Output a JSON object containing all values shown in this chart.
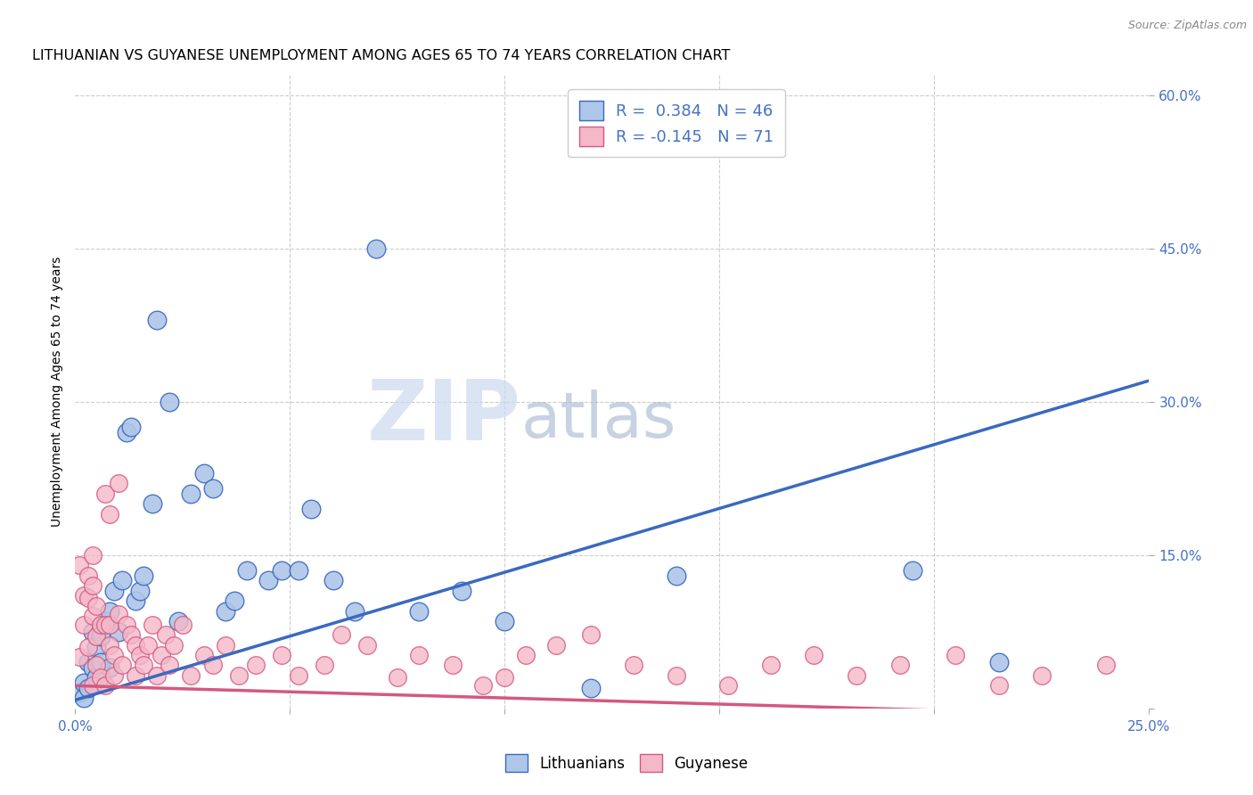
{
  "title": "LITHUANIAN VS GUYANESE UNEMPLOYMENT AMONG AGES 65 TO 74 YEARS CORRELATION CHART",
  "source": "Source: ZipAtlas.com",
  "ylabel": "Unemployment Among Ages 65 to 74 years",
  "xlim": [
    0.0,
    0.25
  ],
  "ylim": [
    0.0,
    0.62
  ],
  "xticks": [
    0.0,
    0.05,
    0.1,
    0.15,
    0.2,
    0.25
  ],
  "xticklabels": [
    "0.0%",
    "",
    "",
    "",
    "",
    "25.0%"
  ],
  "yticks": [
    0.0,
    0.15,
    0.3,
    0.45,
    0.6
  ],
  "yticklabels": [
    "",
    "15.0%",
    "30.0%",
    "45.0%",
    "60.0%"
  ],
  "legend_labels": [
    "Lithuanians",
    "Guyanese"
  ],
  "r_lith": 0.384,
  "n_lith": 46,
  "r_guy": -0.145,
  "n_guy": 71,
  "watermark_zip": "ZIP",
  "watermark_atlas": "atlas",
  "blue_color": "#aec6e8",
  "pink_color": "#f4b8c8",
  "blue_line_color": "#3a6abf",
  "pink_line_color": "#d45880",
  "title_fontsize": 11.5,
  "axis_label_fontsize": 10,
  "tick_fontsize": 11,
  "lith_x": [
    0.001,
    0.002,
    0.002,
    0.003,
    0.003,
    0.004,
    0.004,
    0.005,
    0.005,
    0.006,
    0.006,
    0.007,
    0.008,
    0.008,
    0.009,
    0.01,
    0.011,
    0.012,
    0.013,
    0.014,
    0.015,
    0.016,
    0.018,
    0.019,
    0.022,
    0.024,
    0.027,
    0.03,
    0.032,
    0.035,
    0.037,
    0.04,
    0.045,
    0.048,
    0.052,
    0.055,
    0.06,
    0.065,
    0.07,
    0.08,
    0.09,
    0.1,
    0.12,
    0.14,
    0.195,
    0.215
  ],
  "lith_y": [
    0.015,
    0.025,
    0.01,
    0.045,
    0.02,
    0.04,
    0.075,
    0.03,
    0.06,
    0.045,
    0.07,
    0.085,
    0.04,
    0.095,
    0.115,
    0.075,
    0.125,
    0.27,
    0.275,
    0.105,
    0.115,
    0.13,
    0.2,
    0.38,
    0.3,
    0.085,
    0.21,
    0.23,
    0.215,
    0.095,
    0.105,
    0.135,
    0.125,
    0.135,
    0.135,
    0.195,
    0.125,
    0.095,
    0.45,
    0.095,
    0.115,
    0.085,
    0.02,
    0.13,
    0.135,
    0.045
  ],
  "guy_x": [
    0.001,
    0.001,
    0.002,
    0.002,
    0.003,
    0.003,
    0.003,
    0.004,
    0.004,
    0.004,
    0.004,
    0.005,
    0.005,
    0.005,
    0.006,
    0.006,
    0.007,
    0.007,
    0.007,
    0.008,
    0.008,
    0.008,
    0.009,
    0.009,
    0.01,
    0.01,
    0.011,
    0.012,
    0.013,
    0.014,
    0.014,
    0.015,
    0.016,
    0.017,
    0.018,
    0.019,
    0.02,
    0.021,
    0.022,
    0.023,
    0.025,
    0.027,
    0.03,
    0.032,
    0.035,
    0.038,
    0.042,
    0.048,
    0.052,
    0.058,
    0.062,
    0.068,
    0.075,
    0.08,
    0.088,
    0.095,
    0.1,
    0.105,
    0.112,
    0.12,
    0.13,
    0.14,
    0.152,
    0.162,
    0.172,
    0.182,
    0.192,
    0.205,
    0.215,
    0.225,
    0.24
  ],
  "guy_y": [
    0.05,
    0.14,
    0.082,
    0.11,
    0.108,
    0.06,
    0.13,
    0.09,
    0.022,
    0.15,
    0.12,
    0.042,
    0.1,
    0.07,
    0.03,
    0.082,
    0.022,
    0.082,
    0.21,
    0.062,
    0.19,
    0.082,
    0.052,
    0.032,
    0.22,
    0.092,
    0.042,
    0.082,
    0.072,
    0.062,
    0.032,
    0.052,
    0.042,
    0.062,
    0.082,
    0.032,
    0.052,
    0.072,
    0.042,
    0.062,
    0.082,
    0.032,
    0.052,
    0.042,
    0.062,
    0.032,
    0.042,
    0.052,
    0.032,
    0.042,
    0.072,
    0.062,
    0.03,
    0.052,
    0.042,
    0.022,
    0.03,
    0.052,
    0.062,
    0.072,
    0.042,
    0.032,
    0.022,
    0.042,
    0.052,
    0.032,
    0.042,
    0.052,
    0.022,
    0.032,
    0.042
  ]
}
